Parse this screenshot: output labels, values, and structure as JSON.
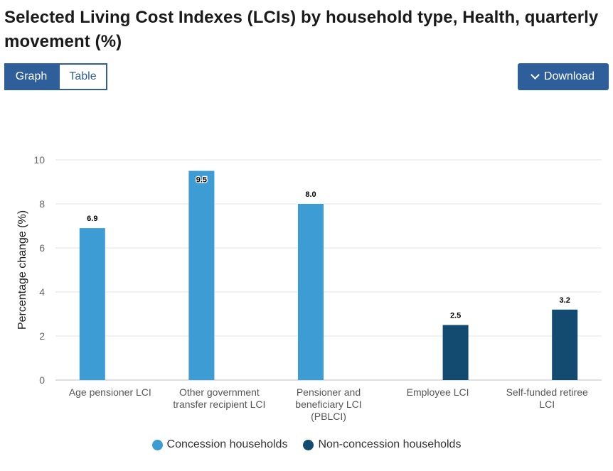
{
  "page": {
    "title": "Selected Living Cost Indexes (LCIs) by household type, Health, quarterly movement (%)",
    "tabs": [
      {
        "label": "Graph",
        "active": true
      },
      {
        "label": "Table",
        "active": false
      }
    ],
    "download_label": "Download"
  },
  "colors": {
    "concession": "#3d9cd3",
    "non_concession": "#134a70",
    "accent": "#2e5f9a"
  },
  "chart_data": {
    "type": "bar",
    "title": "Selected Living Cost Indexes (LCIs) by household type, Health, quarterly movement (%)",
    "xlabel": "",
    "ylabel": "Percentage change (%)",
    "ylim": [
      0,
      10
    ],
    "yticks": [
      0,
      2,
      4,
      6,
      8,
      10
    ],
    "grid": true,
    "legend_position": "bottom",
    "categories": [
      [
        "Age pensioner LCI"
      ],
      [
        "Other government",
        "transfer recipient LCI"
      ],
      [
        "Pensioner and",
        "beneficiary LCI",
        "(PBLCI)"
      ],
      [
        "Employee LCI"
      ],
      [
        "Self-funded retiree",
        "LCI"
      ]
    ],
    "series": [
      {
        "name": "Concession households",
        "color": "#3d9cd3",
        "values": [
          6.9,
          9.5,
          8.0,
          null,
          null
        ]
      },
      {
        "name": "Non-concession households",
        "color": "#134a70",
        "values": [
          null,
          null,
          null,
          2.5,
          3.2
        ]
      }
    ]
  }
}
